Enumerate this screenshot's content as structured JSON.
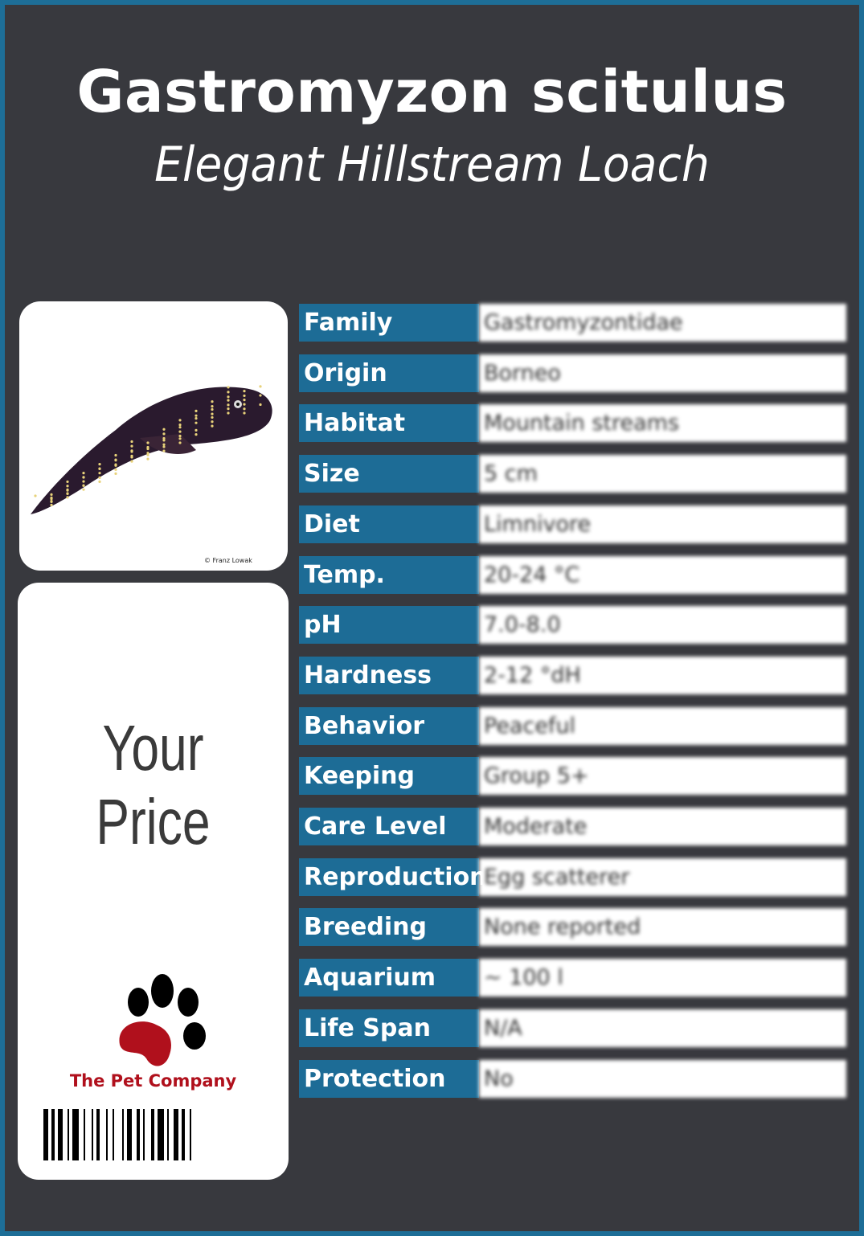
{
  "title": "Gastromyzon scitulus",
  "subtitle": "Elegant Hillstream Loach",
  "photo_credit": "© Franz Lowak",
  "price_label": "Your Price",
  "brand": {
    "name": "The Pet Company",
    "paw_color": "#b0101c"
  },
  "colors": {
    "border": "#1d6e97",
    "background": "#38393e",
    "label_bg": "#1d6c96"
  },
  "rows": [
    {
      "label": "Family",
      "value": "Gastromyzontidae"
    },
    {
      "label": "Origin",
      "value": "Borneo"
    },
    {
      "label": "Habitat",
      "value": "Mountain streams"
    },
    {
      "label": "Size",
      "value": "5 cm"
    },
    {
      "label": "Diet",
      "value": "Limnivore"
    },
    {
      "label": "Temp.",
      "value": "20-24 °C"
    },
    {
      "label": "pH",
      "value": "7.0-8.0"
    },
    {
      "label": "Hardness",
      "value": "2-12 °dH"
    },
    {
      "label": "Behavior",
      "value": "Peaceful"
    },
    {
      "label": "Keeping",
      "value": "Group 5+"
    },
    {
      "label": "Care Level",
      "value": "Moderate"
    },
    {
      "label": "Reproduction",
      "value": "Egg scatterer"
    },
    {
      "label": "Breeding",
      "value": "None reported"
    },
    {
      "label": "Aquarium",
      "value": "~ 100 l"
    },
    {
      "label": "Life Span",
      "value": "N/A"
    },
    {
      "label": "Protection",
      "value": "No"
    }
  ]
}
